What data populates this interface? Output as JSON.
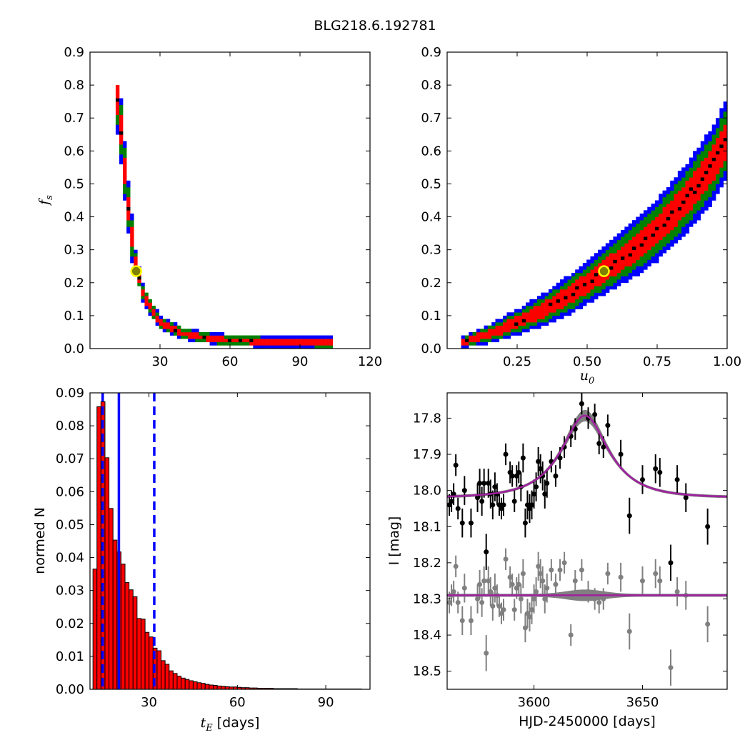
{
  "figure_title": "BLG218.6.192781",
  "colors": {
    "sigma1": "#ff0000",
    "sigma2": "#008000",
    "sigma3": "#0000ff",
    "peak": "#000000",
    "marker_fill": "#808000",
    "marker_edge": "#ffff00",
    "bar_fill": "#ff0000",
    "vline": "#0000ff",
    "data_black": "#000000",
    "data_grey": "#808080",
    "model_band": "#808080",
    "model_line": "#a020a0"
  },
  "chart_data": [
    {
      "id": "fs_vs_tE",
      "type": "heatmap",
      "title": "",
      "xlabel": "",
      "ylabel_symbol": "f",
      "ylabel_sub": "s",
      "xlim": [
        0,
        120
      ],
      "ylim": [
        0.0,
        0.9
      ],
      "xticks": [
        30,
        60,
        90,
        120
      ],
      "xtick_labels": [
        "30",
        "60",
        "90",
        "120"
      ],
      "yticks": [
        0.0,
        0.1,
        0.2,
        0.3,
        0.4,
        0.5,
        0.6,
        0.7,
        0.8,
        0.9
      ],
      "ytick_labels": [
        "0.0",
        "0.1",
        "0.2",
        "0.3",
        "0.4",
        "0.5",
        "0.6",
        "0.7",
        "0.8",
        "0.9"
      ],
      "levels": [
        "3-sigma (blue)",
        "2-sigma (green)",
        "1-sigma (red)",
        "peak (black)"
      ],
      "best_fit": [
        19.8,
        0.235
      ],
      "ridge": {
        "x": [
          11.5,
          13.5,
          16,
          19,
          23,
          30,
          40,
          55,
          75,
          100
        ],
        "y": [
          0.78,
          0.65,
          0.45,
          0.28,
          0.16,
          0.08,
          0.045,
          0.028,
          0.021,
          0.018
        ]
      },
      "grid": false
    },
    {
      "id": "fs_vs_u0",
      "type": "heatmap",
      "title": "",
      "xlabel_symbol": "u",
      "xlabel_sub": "0",
      "ylabel": "",
      "xlim": [
        0.0,
        1.0
      ],
      "ylim": [
        0.0,
        0.9
      ],
      "xticks": [
        0.25,
        0.5,
        0.75,
        1.0
      ],
      "xtick_labels": [
        "0.25",
        "0.50",
        "0.75",
        "1.00"
      ],
      "yticks": [
        0.0,
        0.1,
        0.2,
        0.3,
        0.4,
        0.5,
        0.6,
        0.7,
        0.8,
        0.9
      ],
      "ytick_labels": [
        "0.0",
        "0.1",
        "0.2",
        "0.3",
        "0.4",
        "0.5",
        "0.6",
        "0.7",
        "0.8",
        "0.9"
      ],
      "levels": [
        "3-sigma (blue)",
        "2-sigma (green)",
        "1-sigma (red)",
        "peak (black)"
      ],
      "best_fit": [
        0.56,
        0.235
      ],
      "ridge": {
        "x": [
          0.06,
          0.15,
          0.25,
          0.35,
          0.45,
          0.55,
          0.65,
          0.75,
          0.85,
          0.95,
          1.0
        ],
        "y": [
          0.02,
          0.045,
          0.08,
          0.12,
          0.17,
          0.23,
          0.29,
          0.36,
          0.45,
          0.56,
          0.64
        ]
      },
      "grid": false
    },
    {
      "id": "tE_histogram",
      "type": "bar",
      "title": "",
      "xlabel_symbol": "t",
      "xlabel_sub": "E",
      "xlabel_unit": " [days]",
      "ylabel": "normed N",
      "xlim": [
        10,
        105
      ],
      "ylim": [
        0.0,
        0.09
      ],
      "xticks": [
        30,
        60,
        90
      ],
      "xtick_labels": [
        "30",
        "60",
        "90"
      ],
      "yticks": [
        0.0,
        0.01,
        0.02,
        0.03,
        0.04,
        0.05,
        0.06,
        0.07,
        0.08,
        0.09
      ],
      "ytick_labels": [
        "0.00",
        "0.01",
        "0.02",
        "0.03",
        "0.04",
        "0.05",
        "0.06",
        "0.07",
        "0.08",
        "0.09"
      ],
      "bin_width": 1.36,
      "bin_start": 11.0,
      "values": [
        0.0365,
        0.0858,
        0.0873,
        0.0703,
        0.0549,
        0.0453,
        0.0417,
        0.038,
        0.0324,
        0.0302,
        0.0281,
        0.0215,
        0.0213,
        0.0173,
        0.0159,
        0.0125,
        0.0117,
        0.0087,
        0.0076,
        0.0056,
        0.0048,
        0.004,
        0.0034,
        0.003,
        0.0026,
        0.0023,
        0.002,
        0.0018,
        0.0015,
        0.0013,
        0.0012,
        0.001,
        0.0009,
        0.0008,
        0.0007,
        0.0007,
        0.0006,
        0.0005,
        0.0005,
        0.0004,
        0.0004,
        0.0003,
        0.0003,
        0.0003,
        0.0003,
        0.0002,
        0.0002,
        0.0002,
        0.0002,
        0.0002,
        0.0002,
        0.0001,
        0.0001,
        0.0001,
        0.0001,
        0.0001,
        0.0001,
        0.0001,
        0.0001,
        0.0001,
        0.0001,
        0.0001,
        0.0001,
        0.0001,
        0.0001,
        0.0001,
        0.0001
      ],
      "median": 19.8,
      "interval": [
        14.3,
        31.8
      ],
      "grid": false
    },
    {
      "id": "light_curve",
      "type": "scatter",
      "title": "",
      "xlabel": "HJD-2450000 [days]",
      "ylabel": "I [mag]",
      "xlim": [
        3560,
        3689
      ],
      "ylim": [
        18.55,
        17.73
      ],
      "y_inverted": true,
      "xticks": [
        3600,
        3650
      ],
      "xtick_labels": [
        "3600",
        "3650"
      ],
      "yticks": [
        17.8,
        17.9,
        18.0,
        18.1,
        18.2,
        18.3,
        18.4,
        18.5
      ],
      "ytick_labels": [
        "17.8",
        "17.9",
        "18.0",
        "18.1",
        "18.2",
        "18.3",
        "18.4",
        "18.5"
      ],
      "model": {
        "t0": 3623.5,
        "tE": 19.8,
        "u0": 0.56,
        "fs": 0.235,
        "I_base": 18.02
      },
      "residual_offset": 18.29,
      "series": [
        {
          "role": "data",
          "points": [
            [
              3561,
              18.04,
              0.03
            ],
            [
              3562,
              18.03,
              0.03
            ],
            [
              3563,
              18.01,
              0.03
            ],
            [
              3564,
              17.93,
              0.03
            ],
            [
              3565,
              18.05,
              0.03
            ],
            [
              3567,
              18.09,
              0.04
            ],
            [
              3568,
              18.0,
              0.04
            ],
            [
              3571,
              18.09,
              0.04
            ],
            [
              3574,
              18.02,
              0.04
            ],
            [
              3575,
              17.98,
              0.04
            ],
            [
              3576,
              18.03,
              0.04
            ],
            [
              3577,
              17.98,
              0.04
            ],
            [
              3578,
              18.17,
              0.05
            ],
            [
              3579,
              17.98,
              0.04
            ],
            [
              3580,
              18.01,
              0.04
            ],
            [
              3581,
              18.04,
              0.04
            ],
            [
              3582,
              17.99,
              0.04
            ],
            [
              3583,
              18.01,
              0.03
            ],
            [
              3584,
              18.04,
              0.03
            ],
            [
              3585,
              18.05,
              0.03
            ],
            [
              3586,
              18.04,
              0.03
            ],
            [
              3587,
              17.9,
              0.03
            ],
            [
              3589,
              17.95,
              0.03
            ],
            [
              3590,
              17.96,
              0.03
            ],
            [
              3591,
              18.03,
              0.03
            ],
            [
              3592,
              17.96,
              0.03
            ],
            [
              3593,
              17.95,
              0.03
            ],
            [
              3594,
              17.99,
              0.04
            ],
            [
              3595,
              17.91,
              0.04
            ],
            [
              3596,
              18.09,
              0.04
            ],
            [
              3597,
              18.04,
              0.04
            ],
            [
              3598,
              18.05,
              0.04
            ],
            [
              3599,
              18.04,
              0.04
            ],
            [
              3600,
              18.01,
              0.04
            ],
            [
              3601,
              17.99,
              0.04
            ],
            [
              3602,
              17.92,
              0.04
            ],
            [
              3603,
              17.94,
              0.04
            ],
            [
              3604,
              17.96,
              0.04
            ],
            [
              3605,
              18.01,
              0.04
            ],
            [
              3606,
              17.98,
              0.04
            ],
            [
              3608,
              17.92,
              0.03
            ],
            [
              3610,
              17.96,
              0.03
            ],
            [
              3612,
              17.91,
              0.03
            ],
            [
              3614,
              17.88,
              0.03
            ],
            [
              3617,
              17.85,
              0.03
            ],
            [
              3619,
              17.83,
              0.03
            ],
            [
              3622,
              17.76,
              0.03
            ],
            [
              3625,
              17.8,
              0.03
            ],
            [
              3628,
              17.79,
              0.03
            ],
            [
              3630,
              17.87,
              0.03
            ],
            [
              3632,
              17.88,
              0.03
            ],
            [
              3634,
              17.82,
              0.03
            ],
            [
              3640,
              17.9,
              0.04
            ],
            [
              3644,
              18.07,
              0.05
            ],
            [
              3650,
              17.97,
              0.04
            ],
            [
              3656,
              17.94,
              0.04
            ],
            [
              3658,
              17.95,
              0.04
            ],
            [
              3663,
              18.2,
              0.05
            ],
            [
              3666,
              17.97,
              0.04
            ],
            [
              3670,
              18.02,
              0.04
            ],
            [
              3680,
              18.1,
              0.05
            ]
          ]
        },
        {
          "role": "residuals",
          "points": [
            [
              3561,
              18.31,
              0.03
            ],
            [
              3562,
              18.29,
              0.03
            ],
            [
              3563,
              18.28,
              0.03
            ],
            [
              3564,
              18.21,
              0.03
            ],
            [
              3565,
              18.31,
              0.03
            ],
            [
              3567,
              18.36,
              0.04
            ],
            [
              3568,
              18.27,
              0.04
            ],
            [
              3571,
              18.36,
              0.04
            ],
            [
              3574,
              18.3,
              0.04
            ],
            [
              3575,
              18.26,
              0.04
            ],
            [
              3576,
              18.31,
              0.04
            ],
            [
              3577,
              18.25,
              0.04
            ],
            [
              3578,
              18.45,
              0.05
            ],
            [
              3579,
              18.25,
              0.04
            ],
            [
              3580,
              18.28,
              0.04
            ],
            [
              3581,
              18.32,
              0.04
            ],
            [
              3582,
              18.27,
              0.04
            ],
            [
              3583,
              18.29,
              0.03
            ],
            [
              3584,
              18.32,
              0.03
            ],
            [
              3585,
              18.34,
              0.03
            ],
            [
              3586,
              18.33,
              0.03
            ],
            [
              3587,
              18.19,
              0.03
            ],
            [
              3589,
              18.24,
              0.03
            ],
            [
              3590,
              18.26,
              0.03
            ],
            [
              3591,
              18.33,
              0.03
            ],
            [
              3592,
              18.27,
              0.03
            ],
            [
              3593,
              18.26,
              0.03
            ],
            [
              3594,
              18.3,
              0.04
            ],
            [
              3595,
              18.23,
              0.04
            ],
            [
              3596,
              18.38,
              0.04
            ],
            [
              3597,
              18.34,
              0.04
            ],
            [
              3598,
              18.35,
              0.04
            ],
            [
              3599,
              18.33,
              0.04
            ],
            [
              3600,
              18.3,
              0.04
            ],
            [
              3601,
              18.28,
              0.04
            ],
            [
              3602,
              18.21,
              0.04
            ],
            [
              3603,
              18.23,
              0.04
            ],
            [
              3604,
              18.25,
              0.04
            ],
            [
              3605,
              18.3,
              0.04
            ],
            [
              3606,
              18.27,
              0.04
            ],
            [
              3608,
              18.22,
              0.03
            ],
            [
              3610,
              18.26,
              0.03
            ],
            [
              3612,
              18.22,
              0.03
            ],
            [
              3614,
              18.2,
              0.03
            ],
            [
              3617,
              18.4,
              0.03
            ],
            [
              3619,
              18.25,
              0.03
            ],
            [
              3622,
              18.22,
              0.03
            ],
            [
              3625,
              18.28,
              0.03
            ],
            [
              3628,
              18.3,
              0.03
            ],
            [
              3630,
              18.31,
              0.03
            ],
            [
              3632,
              18.3,
              0.03
            ],
            [
              3634,
              18.23,
              0.03
            ],
            [
              3640,
              18.24,
              0.04
            ],
            [
              3644,
              18.39,
              0.05
            ],
            [
              3650,
              18.25,
              0.04
            ],
            [
              3656,
              18.23,
              0.04
            ],
            [
              3658,
              18.25,
              0.04
            ],
            [
              3663,
              18.49,
              0.05
            ],
            [
              3666,
              18.28,
              0.04
            ],
            [
              3670,
              18.29,
              0.04
            ],
            [
              3680,
              18.37,
              0.05
            ]
          ]
        }
      ],
      "grid": false
    }
  ]
}
